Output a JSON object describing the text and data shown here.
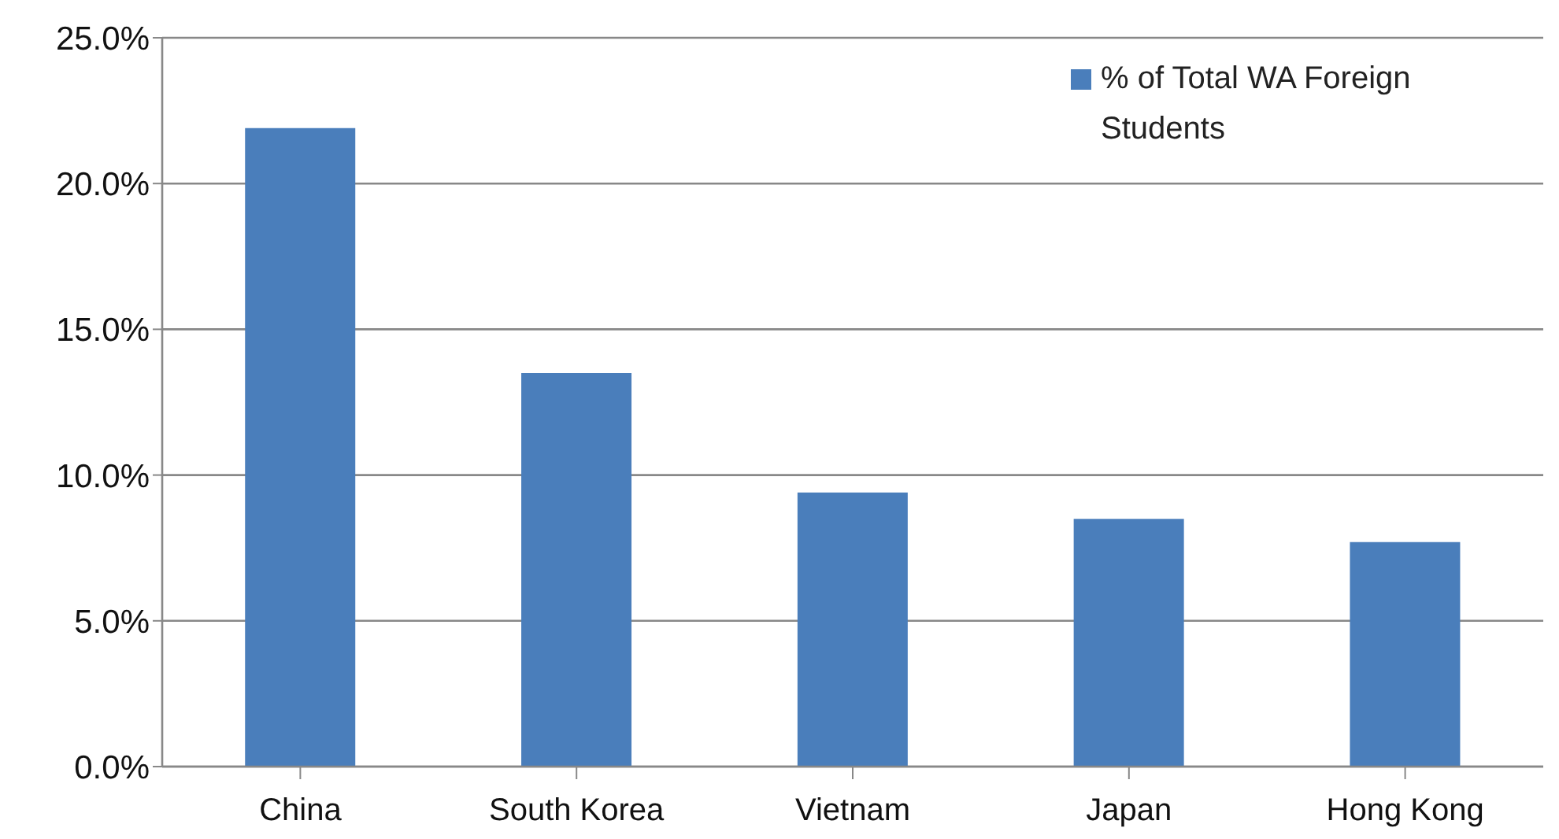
{
  "chart_data": {
    "type": "bar",
    "categories": [
      "China",
      "South Korea",
      "Vietnam",
      "Japan",
      "Hong Kong"
    ],
    "series": [
      {
        "name": "% of Total WA Foreign Students",
        "color": "#4a7ebb",
        "values": [
          21.9,
          13.5,
          9.4,
          8.5,
          7.7
        ]
      }
    ],
    "ylim": [
      0,
      25
    ],
    "yticks": [
      {
        "value": 0,
        "label": "0.0%"
      },
      {
        "value": 5,
        "label": "5.0%"
      },
      {
        "value": 10,
        "label": "10.0%"
      },
      {
        "value": 15,
        "label": "15.0%"
      },
      {
        "value": 20,
        "label": "20.0%"
      },
      {
        "value": 25,
        "label": "25.0%"
      }
    ],
    "grid": "y",
    "legend": "top right"
  }
}
